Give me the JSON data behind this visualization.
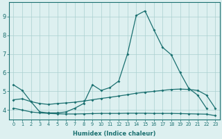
{
  "xlabel": "Humidex (Indice chaleur)",
  "bg_color": "#ddf0f0",
  "line_color": "#1a7070",
  "xlim": [
    -0.5,
    23.5
  ],
  "ylim": [
    3.5,
    9.75
  ],
  "yticks": [
    4,
    5,
    6,
    7,
    8,
    9
  ],
  "xticks": [
    0,
    1,
    2,
    3,
    4,
    5,
    6,
    7,
    8,
    9,
    10,
    11,
    12,
    13,
    14,
    15,
    16,
    17,
    18,
    19,
    20,
    21,
    22,
    23
  ],
  "curve1_x": [
    0,
    1,
    2,
    3,
    4,
    5,
    6,
    7,
    8,
    9,
    10,
    11,
    12,
    13,
    14,
    15,
    16,
    17,
    18,
    19,
    20,
    21,
    22
  ],
  "curve1_y": [
    5.35,
    5.05,
    4.45,
    3.9,
    3.85,
    3.85,
    3.9,
    4.1,
    4.35,
    5.35,
    5.05,
    5.2,
    5.55,
    7.0,
    9.05,
    9.3,
    8.3,
    7.35,
    6.95,
    6.0,
    5.15,
    4.8,
    4.1
  ],
  "curve2_x": [
    0,
    1,
    2,
    3,
    4,
    5,
    6,
    7,
    8,
    9,
    10,
    11,
    12,
    13,
    14,
    15,
    16,
    17,
    18,
    19,
    20,
    21,
    22,
    23
  ],
  "curve2_y": [
    4.55,
    4.6,
    4.45,
    4.35,
    4.3,
    4.35,
    4.38,
    4.42,
    4.48,
    4.55,
    4.62,
    4.68,
    4.75,
    4.82,
    4.9,
    4.95,
    5.0,
    5.05,
    5.1,
    5.12,
    5.1,
    5.05,
    4.8,
    4.1
  ],
  "curve3_x": [
    0,
    1,
    2,
    3,
    4,
    5,
    6,
    7,
    8,
    9,
    10,
    11,
    12,
    13,
    14,
    15,
    16,
    17,
    18,
    19,
    20,
    21,
    22,
    23
  ],
  "curve3_y": [
    4.1,
    4.0,
    3.9,
    3.85,
    3.82,
    3.8,
    3.79,
    3.79,
    3.8,
    3.81,
    3.82,
    3.82,
    3.82,
    3.83,
    3.83,
    3.83,
    3.82,
    3.82,
    3.82,
    3.81,
    3.8,
    3.79,
    3.78,
    3.7
  ]
}
